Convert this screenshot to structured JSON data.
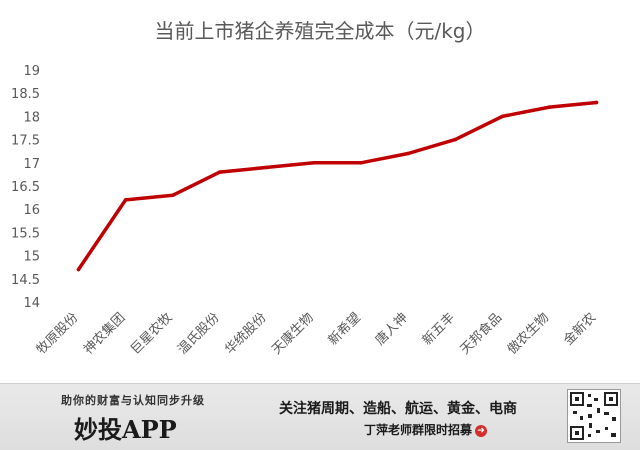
{
  "chart_data": {
    "type": "line",
    "title": "当前上市猪企养殖完全成本（元/kg）",
    "categories": [
      "牧原股份",
      "神农集团",
      "巨星农牧",
      "温氏股份",
      "华统股份",
      "天康生物",
      "新希望",
      "唐人神",
      "新五丰",
      "天邦食品",
      "傲农生物",
      "金新农"
    ],
    "series": [
      {
        "values": [
          14.7,
          16.2,
          16.3,
          16.8,
          16.9,
          17.0,
          17.0,
          17.2,
          17.5,
          18.0,
          18.2,
          18.3
        ]
      }
    ],
    "ylim": [
      14,
      19
    ],
    "yticks": [
      "14",
      "14.5",
      "15",
      "15.5",
      "16",
      "16.5",
      "17",
      "17.5",
      "18",
      "18.5",
      "19"
    ],
    "grid": false,
    "line_color": "#c00000"
  },
  "banner": {
    "slogan": "助你的财富与认知同步升级",
    "brand": "妙投APP",
    "ad_text": "关注猪周期、造船、航运、黄金、电商",
    "cta": "丁萍老师群限时招募",
    "cta_icon": "arrow-right-circle-icon"
  },
  "qr_icon": "qr-code-icon"
}
